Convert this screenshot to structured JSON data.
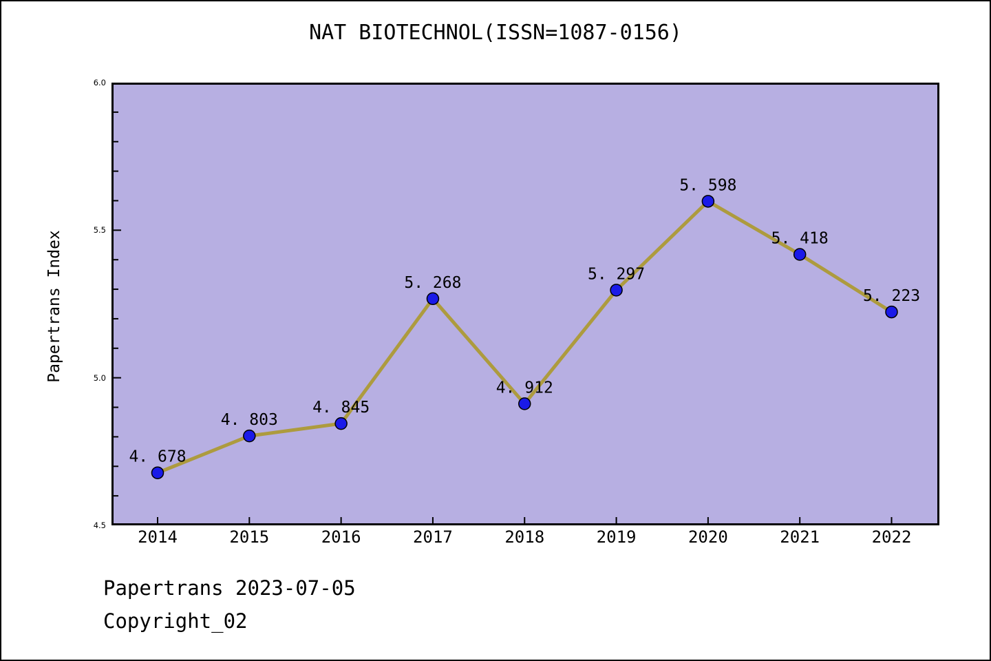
{
  "page": {
    "footer_line1": "Papertrans 2023-07-05",
    "footer_line2": "Copyright_02"
  },
  "chart_data": {
    "type": "line",
    "title": "NAT BIOTECHNOL(ISSN=1087-0156)",
    "xlabel": "",
    "ylabel": "Papertrans Index",
    "categories": [
      "2014",
      "2015",
      "2016",
      "2017",
      "2018",
      "2019",
      "2020",
      "2021",
      "2022"
    ],
    "series": [
      {
        "name": "Papertrans Index",
        "values": [
          4.678,
          4.803,
          4.845,
          5.268,
          4.912,
          5.297,
          5.598,
          5.418,
          5.223
        ]
      }
    ],
    "point_labels": [
      "4. 678",
      "4. 803",
      "4. 845",
      "5. 268",
      "4. 912",
      "5. 297",
      "5. 598",
      "5. 418",
      "5. 223"
    ],
    "ylim": [
      4.5,
      6.0
    ],
    "y_major_ticks": [
      {
        "value": 6.0,
        "label": "6.0"
      },
      {
        "value": 5.5,
        "label": "5.5"
      },
      {
        "value": 5.0,
        "label": "5.0"
      },
      {
        "value": 4.5,
        "label": "4.5"
      }
    ],
    "y_minor_step": 0.1,
    "grid": false,
    "legend": "none",
    "colors": {
      "plot_bg": "#b7afe2",
      "line": "#ad9b3e",
      "marker": "#1a1ae8",
      "marker_edge": "#000000",
      "axis": "#000000",
      "text": "#000000"
    }
  }
}
